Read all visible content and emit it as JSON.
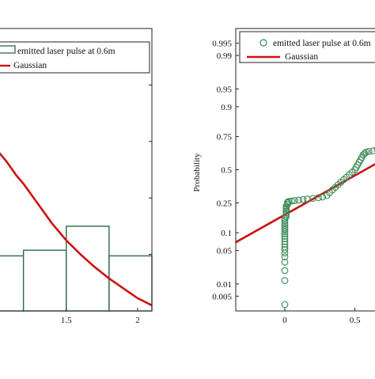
{
  "colors": {
    "histogram_bar": "#2e6b45",
    "gaussian_line": "#cc1111",
    "marker": "#3a8a56",
    "axis": "#222222"
  },
  "chart_data": [
    {
      "type": "bar",
      "title": "",
      "xlabel": "",
      "ylabel": "",
      "xlim": [
        1.03,
        2.1
      ],
      "ylim": [
        0,
        1
      ],
      "grid": false,
      "legend_position": "top",
      "xticks": [
        1.5,
        2
      ],
      "xtick_labels": [
        "1.5",
        "2"
      ],
      "legend": [
        {
          "label": "emitted laser pulse at 0.6m",
          "symbol": "bar-outline",
          "color": "#2e6b45"
        },
        {
          "label": "Gaussian",
          "symbol": "line",
          "color": "#cc1111"
        }
      ],
      "bins": [
        {
          "x0": 0.8,
          "x1": 1.2,
          "height": 0.195
        },
        {
          "x0": 1.2,
          "x1": 1.5,
          "height": 0.215
        },
        {
          "x0": 1.5,
          "x1": 1.8,
          "height": 0.3
        },
        {
          "x0": 1.8,
          "x1": 2.1,
          "height": 0.195
        }
      ],
      "gaussian": {
        "x": [
          1.03,
          1.08,
          1.15,
          1.2,
          1.3,
          1.4,
          1.5,
          1.6,
          1.7,
          1.8,
          1.9,
          2.0,
          2.1
        ],
        "y": [
          0.56,
          0.53,
          0.48,
          0.45,
          0.38,
          0.31,
          0.25,
          0.2,
          0.155,
          0.115,
          0.08,
          0.045,
          0.02
        ]
      }
    },
    {
      "type": "scatter",
      "title": "",
      "xlabel": "",
      "ylabel": "Probability",
      "xlim": [
        -0.35,
        0.7
      ],
      "ylim": [
        0.002,
        0.998
      ],
      "y_scale": "normal-probability",
      "grid": false,
      "legend_position": "top",
      "xticks": [
        0,
        0.5
      ],
      "xtick_labels": [
        "0",
        "0.5"
      ],
      "yticks": [
        0.005,
        0.01,
        0.05,
        0.1,
        0.25,
        0.5,
        0.75,
        0.9,
        0.95,
        0.99,
        0.995
      ],
      "ytick_labels": [
        "0.005",
        "0.01",
        "0.05",
        "0.1",
        "0.25",
        "0.5",
        "0.75",
        "0.9",
        "0.95",
        "0.99",
        "0.995"
      ],
      "legend": [
        {
          "label": "emitted laser pulse at 0.6m",
          "symbol": "circle",
          "color": "#3a8a56"
        },
        {
          "label": "Gaussian",
          "symbol": "line",
          "color": "#cc1111"
        }
      ],
      "gaussian_line": {
        "x": [
          -0.35,
          0.7
        ],
        "y": [
          0.07,
          0.58
        ]
      },
      "series": [
        {
          "x": [
            0.0,
            0.0,
            0.0,
            0.0,
            0.0,
            0.0,
            0.0,
            0.0,
            0.0,
            0.0,
            0.0,
            0.0,
            0.0,
            0.0,
            0.0,
            0.0,
            0.0,
            0.0,
            0.0,
            0.0,
            0.01,
            0.01,
            0.01,
            0.01,
            0.01,
            0.01,
            0.01,
            0.02,
            0.02,
            0.02,
            0.03,
            0.05,
            0.07,
            0.1,
            0.13,
            0.16,
            0.2,
            0.24,
            0.27,
            0.3,
            0.32,
            0.34,
            0.36,
            0.38,
            0.4,
            0.42,
            0.44,
            0.46,
            0.48,
            0.5,
            0.51,
            0.52,
            0.53,
            0.54,
            0.55,
            0.56,
            0.57,
            0.58,
            0.6,
            0.63,
            0.66
          ],
          "y": [
            0.003,
            0.012,
            0.02,
            0.03,
            0.038,
            0.045,
            0.052,
            0.058,
            0.065,
            0.072,
            0.08,
            0.088,
            0.096,
            0.104,
            0.112,
            0.12,
            0.13,
            0.14,
            0.15,
            0.16,
            0.17,
            0.18,
            0.19,
            0.2,
            0.21,
            0.22,
            0.23,
            0.24,
            0.25,
            0.255,
            0.26,
            0.262,
            0.265,
            0.268,
            0.272,
            0.276,
            0.28,
            0.285,
            0.29,
            0.3,
            0.32,
            0.34,
            0.36,
            0.38,
            0.4,
            0.42,
            0.44,
            0.46,
            0.48,
            0.5,
            0.52,
            0.54,
            0.56,
            0.58,
            0.6,
            0.62,
            0.63,
            0.64,
            0.645,
            0.65,
            0.66
          ]
        }
      ]
    }
  ]
}
